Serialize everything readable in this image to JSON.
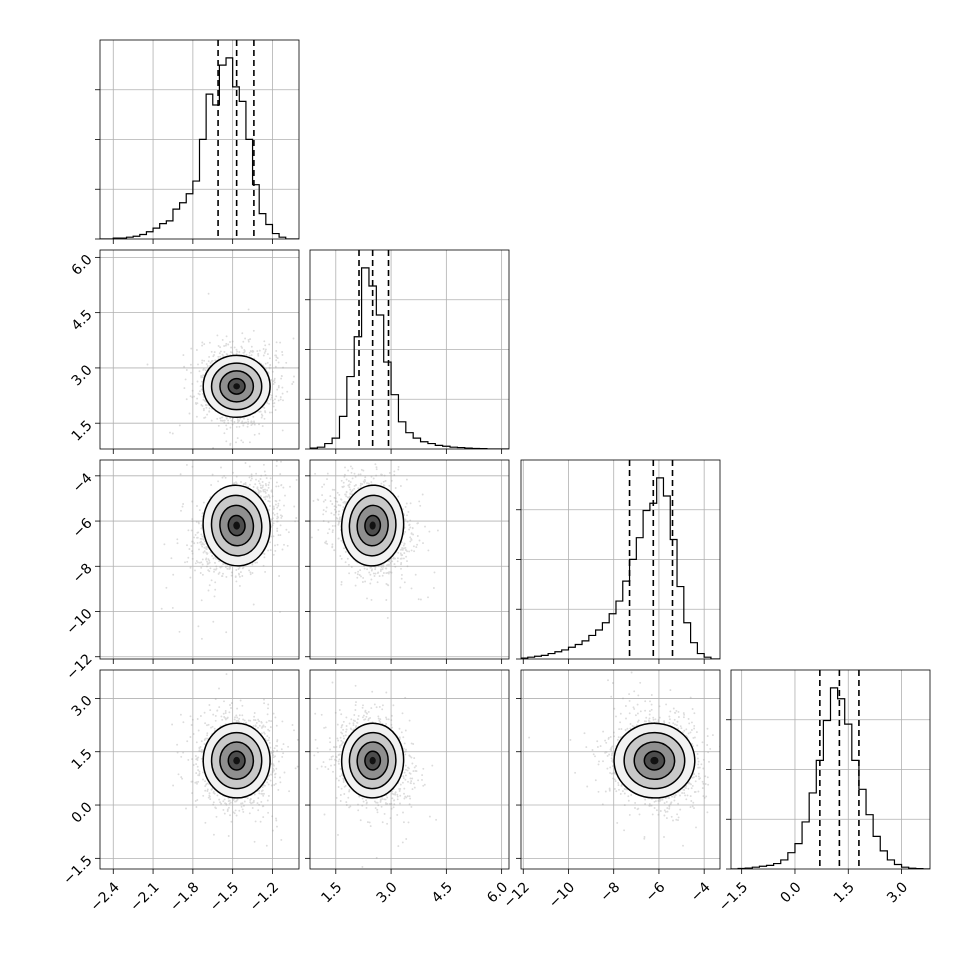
{
  "chart_data": {
    "type": "corner",
    "description_free": true,
    "colors": {
      "ink": "#000000",
      "grid": "#b0b0b0",
      "scatter": "#9a9a9a",
      "background": "#ffffff"
    },
    "grid": true,
    "params": [
      {
        "range": [
          -2.5,
          -1.0
        ],
        "ticks": [
          -2.4,
          -2.1,
          -1.8,
          -1.5,
          -1.2
        ],
        "tick_labels": [
          "−2.4",
          "−2.1",
          "−1.8",
          "−1.5",
          "−1.2"
        ],
        "mean": -1.47,
        "sd": 0.12,
        "quantiles": [
          -1.61,
          -1.47,
          -1.34
        ]
      },
      {
        "range": [
          0.8,
          6.2
        ],
        "ticks": [
          1.5,
          3.0,
          4.5,
          6.0
        ],
        "tick_labels": [
          "1.5",
          "3.0",
          "4.5",
          "6.0"
        ],
        "mean": 2.5,
        "sd": 0.4,
        "quantiles": [
          2.13,
          2.5,
          2.93
        ]
      },
      {
        "range": [
          -12.1,
          -3.3
        ],
        "ticks": [
          -12,
          -10,
          -8,
          -6,
          -4
        ],
        "tick_labels": [
          "−12",
          "−10",
          "−8",
          "−6",
          "−4"
        ],
        "mean": -6.2,
        "sd": 0.85,
        "quantiles": [
          -7.3,
          -6.25,
          -5.4
        ]
      },
      {
        "range": [
          -1.8,
          3.8
        ],
        "ticks": [
          -1.5,
          0.0,
          1.5,
          3.0
        ],
        "tick_labels": [
          "−1.5",
          "0.0",
          "1.5",
          "3.0"
        ],
        "mean": 1.25,
        "sd": 0.5,
        "quantiles": [
          0.7,
          1.25,
          1.8
        ]
      }
    ],
    "histograms": [
      {
        "param": 0,
        "bins": [
          -2.5,
          -2.45,
          -2.4,
          -2.35,
          -2.3,
          -2.25,
          -2.2,
          -2.15,
          -2.1,
          -2.05,
          -2.0,
          -1.95,
          -1.9,
          -1.85,
          -1.8,
          -1.75,
          -1.7,
          -1.65,
          -1.6,
          -1.55,
          -1.5,
          -1.45,
          -1.4,
          -1.35,
          -1.3,
          -1.25,
          -1.2,
          -1.15,
          -1.1,
          -1.05,
          -1.0
        ],
        "counts": [
          0,
          0,
          0.005,
          0.005,
          0.01,
          0.015,
          0.025,
          0.04,
          0.06,
          0.085,
          0.1,
          0.165,
          0.2,
          0.25,
          0.32,
          0.55,
          0.8,
          0.74,
          0.96,
          1.0,
          0.84,
          0.76,
          0.55,
          0.3,
          0.14,
          0.08,
          0.03,
          0.01,
          0,
          0
        ]
      },
      {
        "param": 1,
        "bins": [
          0.8,
          1.0,
          1.2,
          1.4,
          1.6,
          1.8,
          2.0,
          2.2,
          2.4,
          2.6,
          2.8,
          3.0,
          3.2,
          3.4,
          3.6,
          3.8,
          4.0,
          4.2,
          4.4,
          4.6,
          4.8,
          5.0,
          5.2,
          5.4,
          5.6,
          5.8,
          6.0,
          6.2
        ],
        "counts": [
          0.005,
          0.01,
          0.03,
          0.06,
          0.18,
          0.4,
          0.62,
          1.0,
          0.9,
          0.74,
          0.48,
          0.3,
          0.15,
          0.09,
          0.06,
          0.04,
          0.03,
          0.02,
          0.015,
          0.01,
          0.008,
          0.005,
          0.003,
          0.002,
          0,
          0,
          0
        ]
      },
      {
        "param": 2,
        "bins": [
          -12.1,
          -11.8,
          -11.5,
          -11.2,
          -10.9,
          -10.6,
          -10.3,
          -10.0,
          -9.7,
          -9.4,
          -9.1,
          -8.8,
          -8.5,
          -8.2,
          -7.9,
          -7.6,
          -7.3,
          -7.0,
          -6.7,
          -6.4,
          -6.1,
          -5.8,
          -5.5,
          -5.2,
          -4.9,
          -4.6,
          -4.3,
          -4.0,
          -3.7,
          -3.3
        ],
        "counts": [
          0.005,
          0.01,
          0.015,
          0.02,
          0.03,
          0.04,
          0.05,
          0.065,
          0.08,
          0.1,
          0.13,
          0.16,
          0.2,
          0.25,
          0.32,
          0.43,
          0.55,
          0.67,
          0.82,
          0.86,
          1.0,
          0.9,
          0.66,
          0.4,
          0.2,
          0.09,
          0.03,
          0.01,
          0
        ]
      },
      {
        "param": 3,
        "bins": [
          -1.8,
          -1.6,
          -1.4,
          -1.2,
          -1.0,
          -0.8,
          -0.6,
          -0.4,
          -0.2,
          0.0,
          0.2,
          0.4,
          0.6,
          0.8,
          1.0,
          1.2,
          1.4,
          1.6,
          1.8,
          2.0,
          2.2,
          2.4,
          2.6,
          2.8,
          3.0,
          3.2,
          3.4,
          3.6,
          3.8
        ],
        "counts": [
          0,
          0.003,
          0.005,
          0.01,
          0.015,
          0.02,
          0.03,
          0.05,
          0.09,
          0.14,
          0.26,
          0.42,
          0.6,
          0.82,
          1.0,
          0.94,
          0.8,
          0.6,
          0.44,
          0.3,
          0.18,
          0.1,
          0.05,
          0.025,
          0.01,
          0.004,
          0.002,
          0
        ]
      }
    ],
    "correlations": [
      {
        "i": 1,
        "j": 0,
        "rho": 0.0
      },
      {
        "i": 2,
        "j": 0,
        "rho": 0.35
      },
      {
        "i": 2,
        "j": 1,
        "rho": -0.2
      },
      {
        "i": 3,
        "j": 0,
        "rho": 0.0
      },
      {
        "i": 3,
        "j": 1,
        "rho": -0.15
      },
      {
        "i": 3,
        "j": 2,
        "rho": -0.1
      }
    ],
    "contour_levels_sigma": [
      0.5,
      1.0,
      1.5,
      2.0
    ],
    "n_scatter_points": 2200
  }
}
